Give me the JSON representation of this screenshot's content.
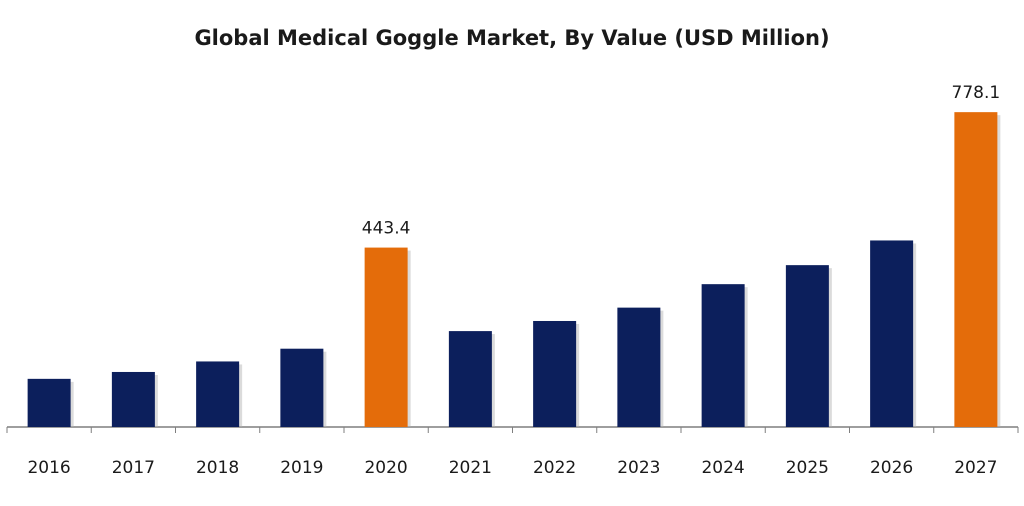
{
  "chart_data": {
    "type": "bar",
    "title": "Global Medical Goggle Market, By Value (USD Million)",
    "xlabel": "",
    "ylabel": "",
    "categories": [
      "2016",
      "2017",
      "2018",
      "2019",
      "2020",
      "2021",
      "2022",
      "2023",
      "2024",
      "2025",
      "2026",
      "2027"
    ],
    "values": [
      119.0,
      136.0,
      162.0,
      193.5,
      443.4,
      237.0,
      262.0,
      295.0,
      353.0,
      400.0,
      461.0,
      778.1
    ],
    "data_labels": [
      {
        "index": 4,
        "text": "443.4"
      },
      {
        "index": 11,
        "text": "778.1"
      }
    ],
    "ylim": [
      0,
      800
    ],
    "grid": false,
    "legend": "none",
    "colors": {
      "bar": "#0c1f5c",
      "highlight": "#e46c0a",
      "axis": "#7f7f7f"
    },
    "highlight_indices": [
      4,
      11
    ]
  }
}
